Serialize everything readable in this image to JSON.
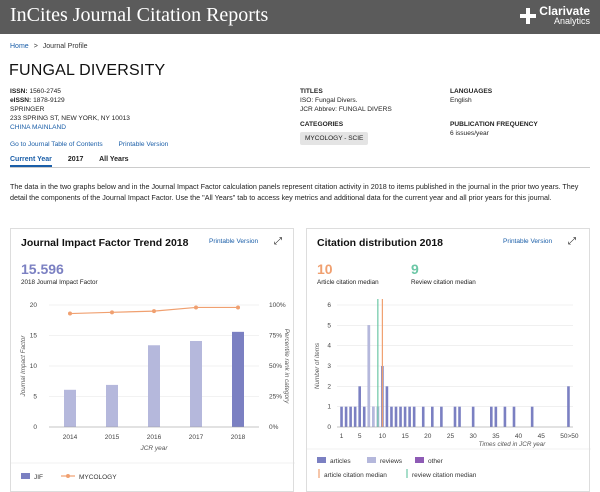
{
  "header": {
    "title": "InCites Journal Citation Reports",
    "brand_line1": "Clarivate",
    "brand_line2": "Analytics"
  },
  "breadcrumb": {
    "home": "Home",
    "sep": ">",
    "current": "Journal Profile"
  },
  "journal": {
    "name": "FUNGAL DIVERSITY",
    "issn_label": "ISSN:",
    "issn": "1560-2745",
    "eissn_label": "eISSN:",
    "eissn": "1878-9129",
    "publisher": "SPRINGER",
    "address": "233 SPRING ST, NEW YORK, NY 10013",
    "country": "CHINA MAINLAND",
    "toc_link": "Go to Journal Table of Contents",
    "printable": "Printable Version",
    "titles_label": "TITLES",
    "iso_label": "ISO:",
    "iso": "Fungal Divers.",
    "jcr_label": "JCR Abbrev:",
    "jcr": "FUNGAL DIVERS",
    "categories_label": "CATEGORIES",
    "category": "MYCOLOGY - SCIE",
    "languages_label": "LANGUAGES",
    "language": "English",
    "freq_label": "PUBLICATION FREQUENCY",
    "freq": "6 issues/year"
  },
  "tabs": [
    "Current Year",
    "2017",
    "All Years"
  ],
  "description": "The data in the two graphs below and in the Journal Impact Factor calculation panels represent citation activity in 2018 to items published in the journal in the prior two years. They detail the components of the Journal Impact Factor. Use the \"All Years\" tab to access key metrics and additional data for the current year and all prior years for this journal.",
  "jif_panel": {
    "title": "Journal Impact Factor Trend 2018",
    "printable": "Printable Version",
    "value": "15.596",
    "value_label": "2018 Journal Impact Factor",
    "legend_jif": "JIF",
    "legend_myco": "MYCOLOGY"
  },
  "cit_panel": {
    "title": "Citation distribution 2018",
    "printable": "Printable Version",
    "article_median": "10",
    "article_median_label": "Article citation median",
    "review_median": "9",
    "review_median_label": "Review citation median",
    "legend": [
      "articles",
      "reviews",
      "other",
      "article citation median",
      "review citation median"
    ]
  },
  "colors": {
    "jif_bar": "#b5b8dc",
    "jif_bar_last": "#7b80c2",
    "myco_line": "#f0a070",
    "article": "#7b80c2",
    "review": "#b5b8dc",
    "other": "#8e5bb5",
    "art_med": "#f0a070",
    "rev_med": "#6cc7a6"
  },
  "chart_data": [
    {
      "type": "bar",
      "title": "Journal Impact Factor Trend 2018",
      "xlabel": "JCR year",
      "ylabel": "Journal Impact Factor",
      "y2label": "Percentile rank in category",
      "categories": [
        "2014",
        "2015",
        "2016",
        "2017",
        "2018"
      ],
      "ylim": [
        0,
        20
      ],
      "y2lim": [
        0,
        100
      ],
      "yticks": [
        "0",
        "5",
        "10",
        "15",
        "20"
      ],
      "y2ticks": [
        "0%",
        "25%",
        "50%",
        "75%",
        "100%"
      ],
      "series": [
        {
          "name": "JIF",
          "type": "bar",
          "values": [
            6.1,
            6.9,
            13.4,
            14.1,
            15.6
          ]
        },
        {
          "name": "MYCOLOGY",
          "type": "line",
          "axis": "y2",
          "values": [
            93,
            94,
            95,
            98,
            98
          ]
        }
      ]
    },
    {
      "type": "bar",
      "title": "Citation distribution 2018",
      "xlabel": "Times cited in JCR year",
      "ylabel": "Number of items",
      "ylim": [
        0,
        6
      ],
      "yticks": [
        "0",
        "1",
        "2",
        "3",
        "4",
        "5",
        "6"
      ],
      "xticks": [
        "1",
        "5",
        "10",
        "15",
        "20",
        "25",
        "30",
        "35",
        "40",
        "45",
        "50",
        ">50"
      ],
      "series": [
        {
          "name": "articles",
          "x": [
            1,
            2,
            3,
            4,
            5,
            6,
            7,
            8,
            9,
            10,
            11,
            12,
            13,
            14,
            15,
            16,
            17,
            19,
            21,
            23,
            26,
            27,
            30,
            34,
            35,
            37,
            39,
            43,
            51
          ],
          "values": [
            1,
            1,
            1,
            1,
            2,
            1,
            5,
            1,
            1,
            3,
            2,
            1,
            1,
            1,
            1,
            1,
            1,
            1,
            1,
            1,
            1,
            1,
            1,
            1,
            1,
            1,
            1,
            1,
            2
          ]
        },
        {
          "name": "reviews",
          "x": [
            7,
            8,
            9
          ],
          "values": [
            5,
            1,
            1
          ]
        },
        {
          "name": "article citation median",
          "type": "vline",
          "x": 10
        },
        {
          "name": "review citation median",
          "type": "vline",
          "x": 9
        }
      ]
    }
  ]
}
